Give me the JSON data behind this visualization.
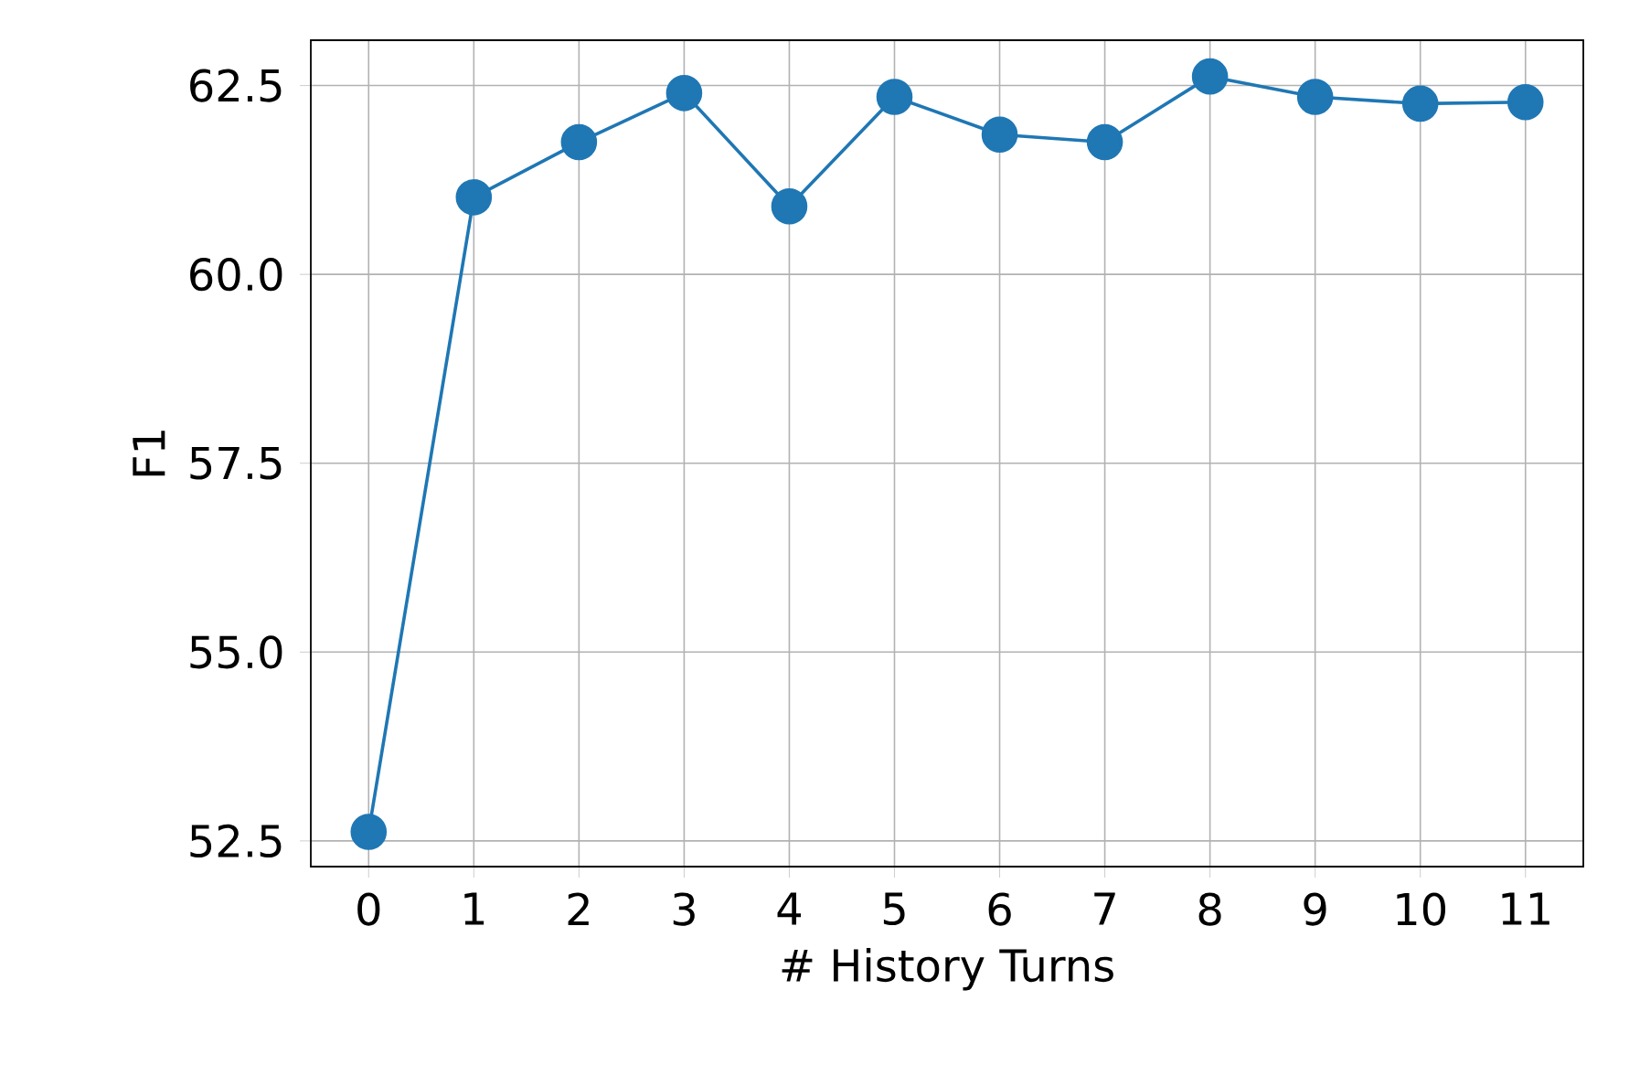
{
  "chart_data": {
    "type": "line",
    "xlabel": "# History Turns",
    "ylabel": "F1",
    "x": [
      0,
      1,
      2,
      3,
      4,
      5,
      6,
      7,
      8,
      9,
      10,
      11
    ],
    "values": [
      52.62,
      61.02,
      61.75,
      62.4,
      60.9,
      62.35,
      61.85,
      61.75,
      62.62,
      62.35,
      62.26,
      62.28
    ],
    "color": "#1f77b4",
    "marker": "circle",
    "grid": true,
    "xlim": [
      -0.55,
      11.55
    ],
    "ylim": [
      52.16,
      63.1
    ],
    "xticks": [
      0,
      1,
      2,
      3,
      4,
      5,
      6,
      7,
      8,
      9,
      10,
      11
    ],
    "yticks": [
      {
        "value": 52.5,
        "label": "52.5"
      },
      {
        "value": 55,
        "label": "55.0"
      },
      {
        "value": 57.5,
        "label": "57.5"
      },
      {
        "value": 60,
        "label": "60.0"
      },
      {
        "value": 62.5,
        "label": "62.5"
      }
    ]
  }
}
